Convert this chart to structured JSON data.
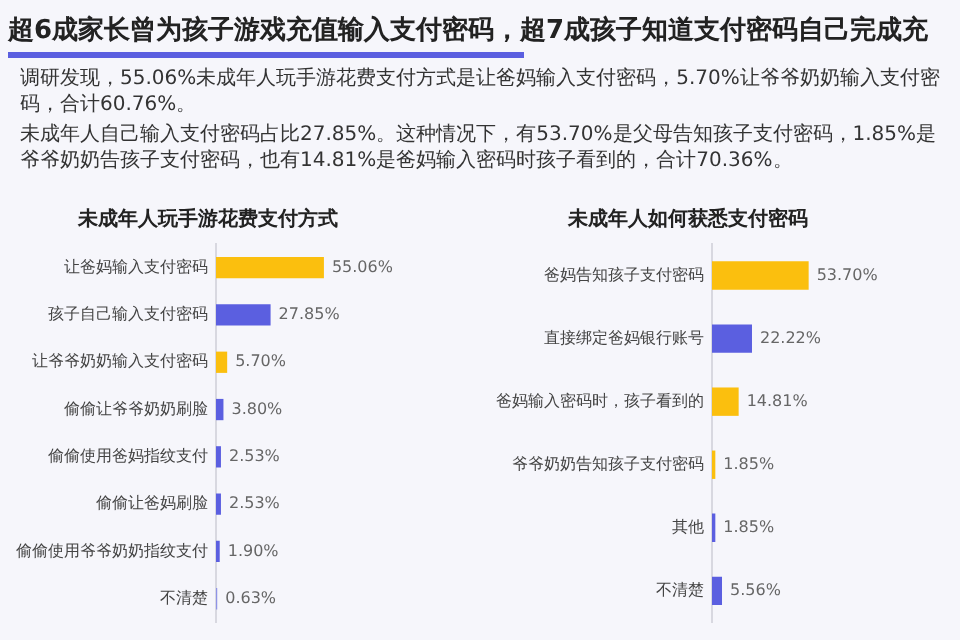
{
  "chart_data": [
    {
      "type": "other",
      "title": "超6成家长曾为孩子游戏充值输入支付密码，超7成孩子知道支付密码自己完成充",
      "annotations": [
        "调研发现，55.06%未成年人玩手游花费支付方式是让爸妈输入支付密码，5.70%让爷爷奶奶输入支付密码，合计60.76%。",
        "未成年人自己输入支付密码占比27.85%。这种情况下，有53.70%是父母告知孩子支付密码，1.85%是爷爷奶奶告孩子支付密码，也有14.81%是爸妈输入密码时孩子看到的，合计70.36%。"
      ]
    },
    {
      "type": "bar",
      "orientation": "horizontal",
      "title": "未成年人玩手游花费支付方式",
      "categories": [
        "让爸妈输入支付密码",
        "孩子自己输入支付密码",
        "让爷爷奶奶输入支付密码",
        "偷偷让爷爷奶奶刷脸",
        "偷偷使用爸妈指纹支付",
        "偷偷让爸妈刷脸",
        "偷偷使用爷爷奶奶指纹支付",
        "不清楚"
      ],
      "values": [
        55.06,
        27.85,
        5.7,
        3.8,
        2.53,
        2.53,
        1.9,
        0.63
      ],
      "colors": [
        "#fbbf0e",
        "#5b5fe0",
        "#fbbf0e",
        "#5b5fe0",
        "#5b5fe0",
        "#5b5fe0",
        "#5b5fe0",
        "#8f93e6"
      ],
      "value_labels": [
        "55.06%",
        "27.85%",
        "5.70%",
        "3.80%",
        "2.53%",
        "2.53%",
        "1.90%",
        "0.63%"
      ],
      "tick_labels": "y",
      "grid": false
    },
    {
      "type": "bar",
      "orientation": "horizontal",
      "title": "未成年人如何获悉支付密码",
      "categories": [
        "爸妈告知孩子支付密码",
        "直接绑定爸妈银行账号",
        "爸妈输入密码时，孩子看到的",
        "爷爷奶奶告知孩子支付密码",
        "其他",
        "不清楚"
      ],
      "values": [
        53.7,
        22.22,
        14.81,
        1.85,
        1.85,
        5.56
      ],
      "colors": [
        "#fbbf0e",
        "#5b5fe0",
        "#fbbf0e",
        "#fbbf0e",
        "#5b5fe0",
        "#5b5fe0"
      ],
      "value_labels": [
        "53.70%",
        "22.22%",
        "14.81%",
        "1.85%",
        "1.85%",
        "5.56%"
      ],
      "tick_labels": "y",
      "grid": false
    }
  ]
}
